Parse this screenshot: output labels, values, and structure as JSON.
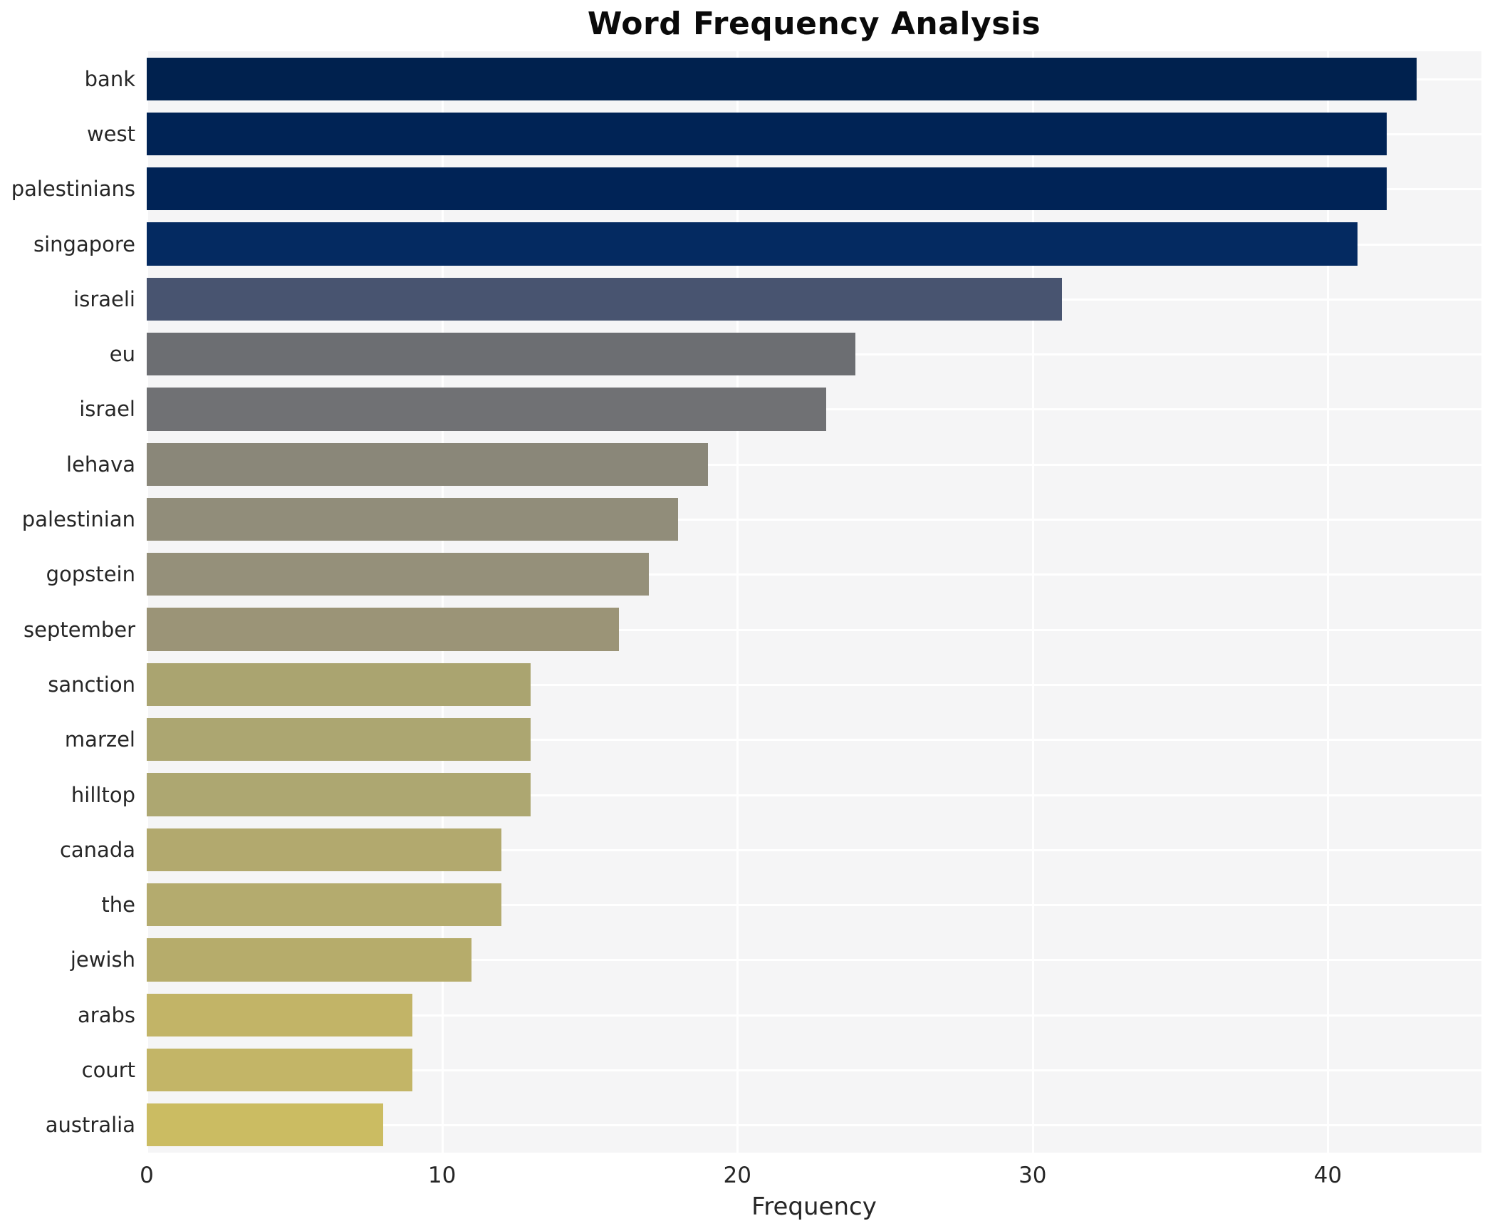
{
  "chart_data": {
    "type": "bar",
    "orientation": "horizontal",
    "title": "Word Frequency Analysis",
    "xlabel": "Frequency",
    "ylabel": "",
    "categories": [
      "bank",
      "west",
      "palestinians",
      "singapore",
      "israeli",
      "eu",
      "israel",
      "lehava",
      "palestinian",
      "gopstein",
      "september",
      "sanction",
      "marzel",
      "hilltop",
      "canada",
      "the",
      "jewish",
      "arabs",
      "court",
      "australia"
    ],
    "values": [
      43,
      42,
      42,
      41,
      31,
      24,
      23,
      19,
      18,
      17,
      16,
      13,
      13,
      13,
      12,
      12,
      11,
      9,
      9,
      8
    ],
    "bar_colors": [
      "#00214e",
      "#002355",
      "#002356",
      "#042a61",
      "#485470",
      "#6c6e72",
      "#707174",
      "#8a8779",
      "#918d7a",
      "#95907a",
      "#9b9477",
      "#aaa470",
      "#aca671",
      "#ada771",
      "#b2a96e",
      "#b4ab6e",
      "#b6ac6b",
      "#c2b467",
      "#c3b567",
      "#cbbc62"
    ],
    "xlim": [
      0,
      45.2
    ],
    "xticks": [
      0,
      10,
      20,
      30,
      40
    ],
    "grid": true,
    "legend_position": "none",
    "plot_background": "#f5f5f6",
    "grid_color": "#ffffff",
    "text_color": "#262626",
    "title_color": "#0a0a0a"
  }
}
